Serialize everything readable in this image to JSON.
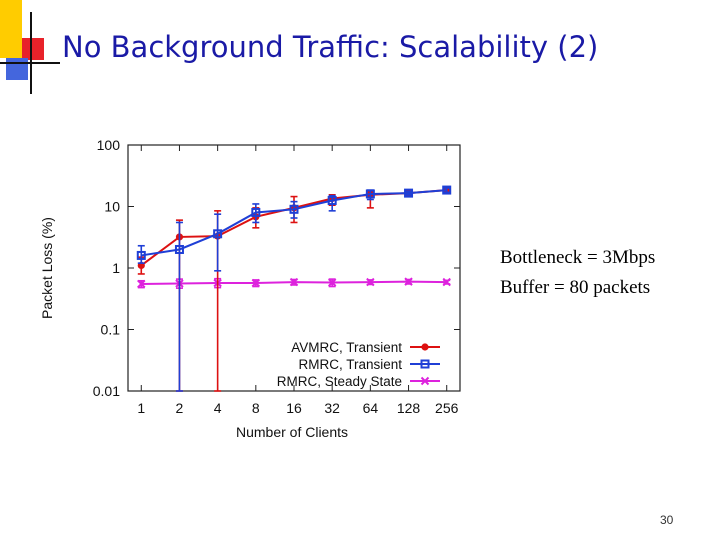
{
  "slide": {
    "title": "No Background Traffic: Scalability (2)",
    "notes": [
      "Bottleneck = 3Mbps",
      "Buffer = 80 packets"
    ],
    "page_number": "30",
    "accent_colors": {
      "yellow": "#ffcc00",
      "red": "#e8222a",
      "blue": "#4466dd",
      "title": "#1a1aa6"
    }
  },
  "chart_data": {
    "type": "line",
    "title": "",
    "xlabel": "Number of Clients",
    "ylabel": "Packet Loss (%)",
    "categories": [
      "1",
      "2",
      "4",
      "8",
      "16",
      "32",
      "64",
      "128",
      "256"
    ],
    "yscale": "log",
    "ylim": [
      0.01,
      100
    ],
    "yticks": [
      {
        "value": 0.01,
        "label": "0.01"
      },
      {
        "value": 0.1,
        "label": "0.1"
      },
      {
        "value": 1,
        "label": "1"
      },
      {
        "value": 10,
        "label": "10"
      },
      {
        "value": 100,
        "label": "100"
      }
    ],
    "grid": false,
    "legend_position": "bottom-right",
    "series": [
      {
        "name": "AVMRC, Transient",
        "color": "#dd1111",
        "marker": "circle",
        "values": [
          1.1,
          3.2,
          3.3,
          6.8,
          9.5,
          13.5,
          15.5,
          16.5,
          18.5
        ],
        "err_low": [
          0.8,
          0.01,
          0.01,
          4.5,
          5.5,
          10.5,
          9.5,
          15,
          17
        ],
        "err_high": [
          1.5,
          6,
          8.5,
          9.5,
          14.5,
          15.5,
          17.5,
          18,
          20
        ]
      },
      {
        "name": "RMRC, Transient",
        "color": "#1f3fd6",
        "marker": "square",
        "values": [
          1.6,
          2.0,
          3.6,
          8.0,
          9.0,
          12.5,
          16.0,
          16.5,
          18.5
        ],
        "err_low": [
          1.2,
          0.01,
          0.9,
          5.5,
          6.5,
          8.5,
          13,
          15.5,
          17
        ],
        "err_high": [
          2.3,
          5.5,
          7.5,
          11,
          12,
          15,
          18.5,
          17.5,
          20
        ]
      },
      {
        "name": "RMRC, Steady State",
        "color": "#dd22dd",
        "marker": "x",
        "values": [
          0.55,
          0.56,
          0.57,
          0.57,
          0.59,
          0.58,
          0.59,
          0.6,
          0.59
        ],
        "err_low": [
          0.48,
          0.47,
          0.48,
          0.5,
          0.53,
          0.5,
          0.54,
          0.55,
          0.55
        ],
        "err_high": [
          0.62,
          0.66,
          0.67,
          0.64,
          0.65,
          0.66,
          0.64,
          0.65,
          0.63
        ]
      }
    ]
  }
}
